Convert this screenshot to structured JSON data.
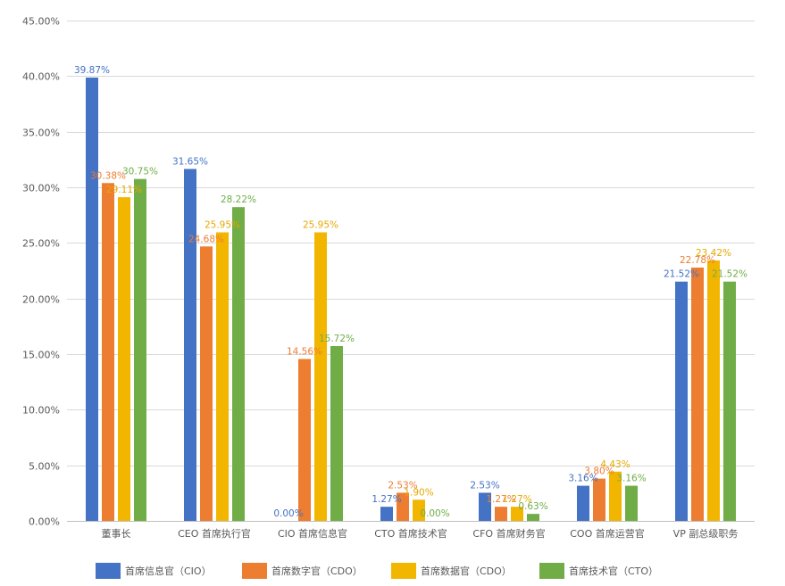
{
  "chart_data": {
    "type": "bar",
    "categories": [
      "董事长",
      "CEO 首席执行官",
      "CIO 首席信息官",
      "CTO 首席技术官",
      "CFO 首席财务官",
      "COO 首席运营官",
      "VP 副总级职务"
    ],
    "series": [
      {
        "name": "首席信息官（CIO）",
        "color": "#4472c4",
        "values": [
          39.87,
          31.65,
          0.0,
          1.27,
          2.53,
          3.16,
          21.52
        ],
        "labels": [
          "39.87%",
          "31.65%",
          "0.00%",
          "1.27%",
          "2.53%",
          "3.16%",
          "21.52%"
        ]
      },
      {
        "name": "首席数字官（CDO）",
        "color": "#ed7d31",
        "values": [
          30.38,
          24.68,
          14.56,
          2.53,
          1.27,
          3.8,
          22.78
        ],
        "labels": [
          "30.38%",
          "24.68%",
          "14.56%",
          "2.53%",
          "1.27%",
          "3.80%",
          "22.78%"
        ]
      },
      {
        "name": "首席数据官（CDO）",
        "color": "#f2b600",
        "values": [
          29.11,
          25.95,
          25.95,
          1.9,
          1.27,
          4.43,
          23.42
        ],
        "labels": [
          "29.11%",
          "25.95%",
          "25.95%",
          "1.90%",
          "1.27%",
          "4.43%",
          "23.42%"
        ]
      },
      {
        "name": "首席技术官（CTO）",
        "color": "#70ad47",
        "values": [
          30.75,
          28.22,
          15.72,
          0.0,
          0.63,
          3.16,
          21.52
        ],
        "labels": [
          "30.75%",
          "28.22%",
          "15.72%",
          "0.00%",
          "0.63%",
          "3.16%",
          "21.52%"
        ]
      }
    ],
    "label_colors": [
      "#4472c4",
      "#ed7d31",
      "#e6a800",
      "#70ad47"
    ],
    "ylim": [
      0,
      45
    ],
    "yticks": [
      0,
      5,
      10,
      15,
      20,
      25,
      30,
      35,
      40,
      45
    ],
    "ytick_labels": [
      "0.00%",
      "5.00%",
      "10.00%",
      "15.00%",
      "20.00%",
      "25.00%",
      "30.00%",
      "35.00%",
      "40.00%",
      "45.00%"
    ],
    "grid": true,
    "legend_position": "bottom",
    "title": "",
    "xlabel": "",
    "ylabel": ""
  }
}
